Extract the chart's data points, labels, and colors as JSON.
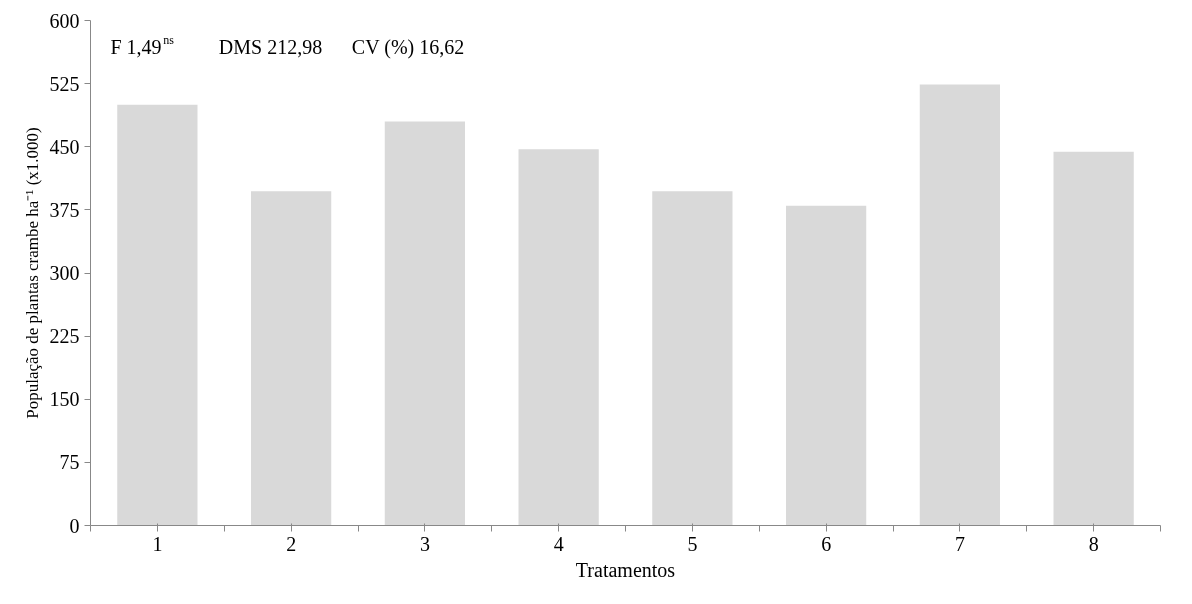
{
  "chart_data": {
    "type": "bar",
    "xlabel": "Tratamentos",
    "ylabel": "População de plantas crambe ha⁻¹ (x1.000)",
    "categories": [
      "1",
      "2",
      "3",
      "4",
      "5",
      "6",
      "7",
      "8"
    ],
    "values": [
      500,
      397,
      480,
      447,
      397,
      380,
      524,
      444
    ],
    "color": "#d9d9d9",
    "ylim": [
      0,
      600
    ],
    "yticks": [
      0,
      75,
      150,
      225,
      300,
      375,
      450,
      525,
      600
    ],
    "grid": false,
    "annotations": [
      "F 1,49$^{ns}$",
      "DMS 212,98",
      "CV (%) 16,62"
    ]
  }
}
